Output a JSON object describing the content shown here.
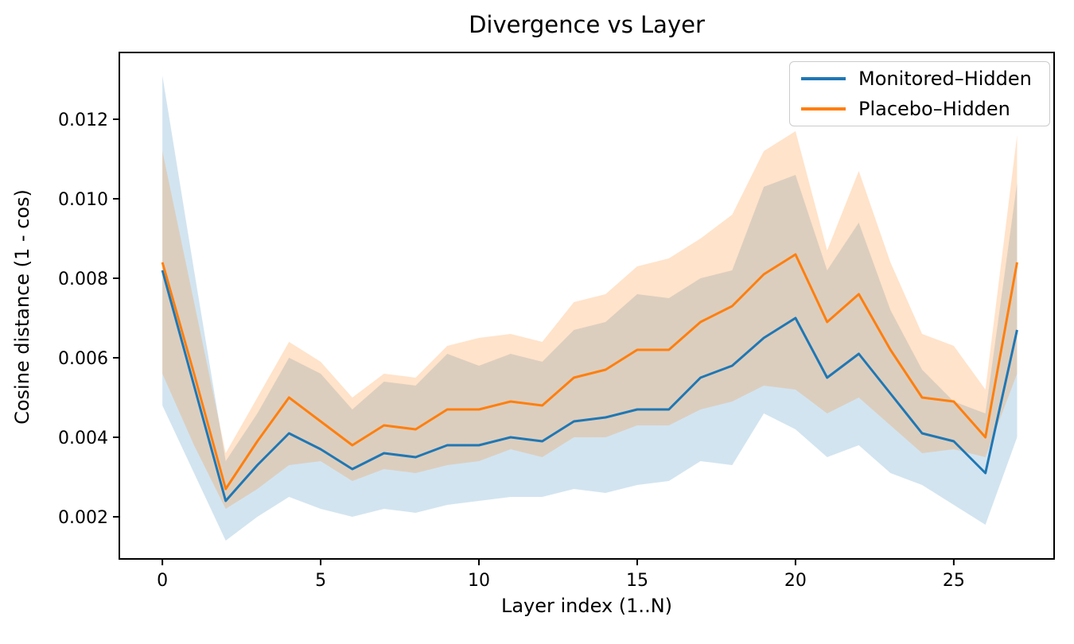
{
  "chart_data": {
    "type": "line",
    "title": "Divergence vs Layer",
    "xlabel": "Layer index (1..N)",
    "ylabel": "Cosine distance (1 - cos)",
    "grid": false,
    "legend_position": "upper right",
    "xlim": [
      -1.36,
      28.17
    ],
    "ylim": [
      0.00094,
      0.01368
    ],
    "xticks": [
      0,
      5,
      10,
      15,
      20,
      25
    ],
    "xtick_labels": [
      "0",
      "5",
      "10",
      "15",
      "20",
      "25"
    ],
    "yticks": [
      0.002,
      0.004,
      0.006,
      0.008,
      0.01,
      0.012
    ],
    "ytick_labels": [
      "0.002",
      "0.004",
      "0.006",
      "0.008",
      "0.010",
      "0.012"
    ],
    "x": [
      0,
      1,
      2,
      3,
      4,
      5,
      6,
      7,
      8,
      9,
      10,
      11,
      12,
      13,
      14,
      15,
      16,
      17,
      18,
      19,
      20,
      21,
      22,
      23,
      24,
      25,
      26,
      27
    ],
    "series": [
      {
        "name": "Monitored–Hidden",
        "color": "#1f77b4",
        "band_alpha": 0.2,
        "values": [
          0.0082,
          0.0053,
          0.0024,
          0.0033,
          0.0041,
          0.0037,
          0.0032,
          0.0036,
          0.0035,
          0.0038,
          0.0038,
          0.004,
          0.0039,
          0.0044,
          0.0045,
          0.0047,
          0.0047,
          0.0055,
          0.0058,
          0.0065,
          0.007,
          0.0055,
          0.0061,
          0.0051,
          0.0041,
          0.0039,
          0.0031,
          0.0067
        ],
        "band_lower": [
          0.0048,
          0.0031,
          0.0014,
          0.002,
          0.0025,
          0.0022,
          0.002,
          0.0022,
          0.0021,
          0.0023,
          0.0024,
          0.0025,
          0.0025,
          0.0027,
          0.0026,
          0.0028,
          0.0029,
          0.0034,
          0.0033,
          0.0046,
          0.0042,
          0.0035,
          0.0038,
          0.0031,
          0.0028,
          0.0023,
          0.0018,
          0.004
        ],
        "band_upper": [
          0.0131,
          0.0082,
          0.0034,
          0.0046,
          0.006,
          0.0056,
          0.0047,
          0.0054,
          0.0053,
          0.0061,
          0.0058,
          0.0061,
          0.0059,
          0.0067,
          0.0069,
          0.0076,
          0.0075,
          0.008,
          0.0082,
          0.0103,
          0.0106,
          0.0082,
          0.0094,
          0.0072,
          0.0057,
          0.0049,
          0.0046,
          0.0104
        ]
      },
      {
        "name": "Placebo–Hidden",
        "color": "#ff7f0e",
        "band_alpha": 0.22,
        "values": [
          0.0084,
          0.0056,
          0.0027,
          0.0039,
          0.005,
          0.0044,
          0.0038,
          0.0043,
          0.0042,
          0.0047,
          0.0047,
          0.0049,
          0.0048,
          0.0055,
          0.0057,
          0.0062,
          0.0062,
          0.0069,
          0.0073,
          0.0081,
          0.0086,
          0.0069,
          0.0076,
          0.0062,
          0.005,
          0.0049,
          0.004,
          0.0084
        ],
        "band_lower": [
          0.0056,
          0.0038,
          0.0022,
          0.0027,
          0.0033,
          0.0034,
          0.0029,
          0.0032,
          0.0031,
          0.0033,
          0.0034,
          0.0037,
          0.0035,
          0.004,
          0.004,
          0.0043,
          0.0043,
          0.0047,
          0.0049,
          0.0053,
          0.0052,
          0.0046,
          0.005,
          0.0043,
          0.0036,
          0.0037,
          0.0035,
          0.0056
        ],
        "band_upper": [
          0.0112,
          0.0074,
          0.0036,
          0.005,
          0.0064,
          0.0059,
          0.005,
          0.0056,
          0.0055,
          0.0063,
          0.0065,
          0.0066,
          0.0064,
          0.0074,
          0.0076,
          0.0083,
          0.0085,
          0.009,
          0.0096,
          0.0112,
          0.0117,
          0.0087,
          0.0107,
          0.0084,
          0.0066,
          0.0063,
          0.0052,
          0.0116
        ]
      }
    ]
  }
}
